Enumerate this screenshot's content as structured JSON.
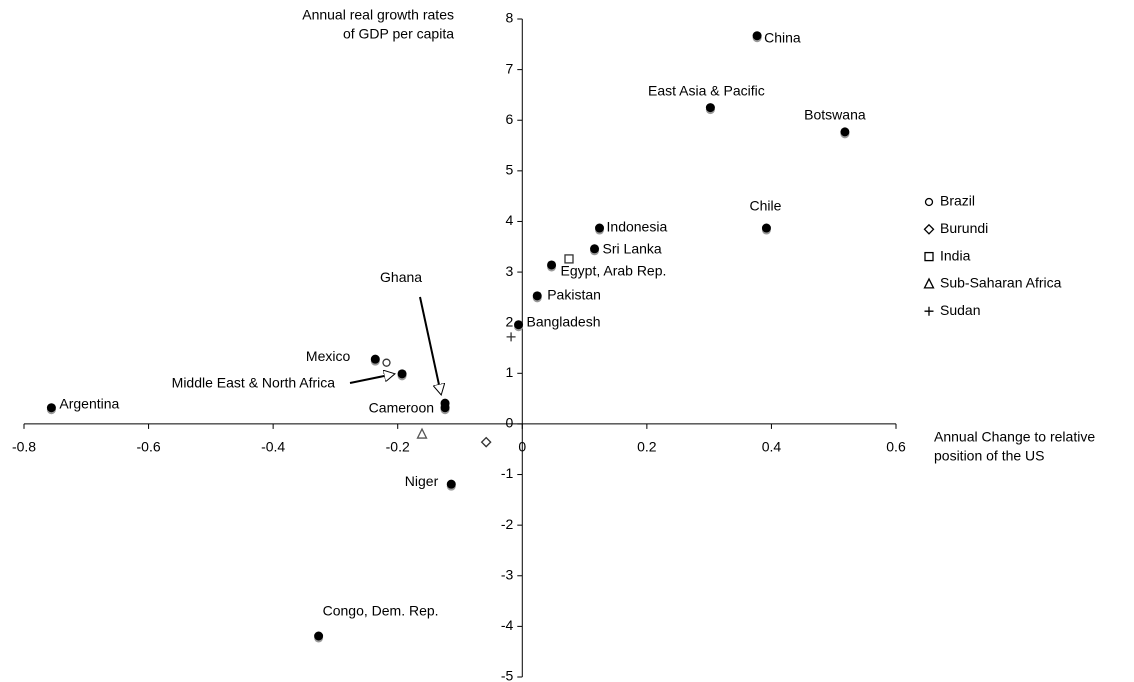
{
  "chart_data": {
    "type": "scatter",
    "xlabel": [
      "Annual Change to relative",
      "position of the US"
    ],
    "ylabel": [
      "Annual real growth rates",
      "of GDP per capita"
    ],
    "xlim": [
      -0.8,
      0.6
    ],
    "ylim": [
      -5,
      8
    ],
    "xticks": [
      -0.8,
      -0.6,
      -0.4,
      -0.2,
      0,
      0.2,
      0.4,
      0.6
    ],
    "yticks": [
      -5,
      -4,
      -3,
      -2,
      -1,
      0,
      1,
      2,
      3,
      4,
      5,
      6,
      7,
      8
    ],
    "points": {
      "color": "#000000",
      "shadow_color": "#999999",
      "labels": [
        "China",
        "East Asia & Pacific",
        "Botswana",
        "Chile",
        "Indonesia",
        "Sri Lanka",
        "Egypt, Arab Rep.",
        "Pakistan",
        "Bangladesh",
        "Mexico",
        "Middle East & North Africa",
        "Ghana",
        "Cameroon",
        "Argentina",
        "Niger",
        "Congo, Dem. Rep."
      ],
      "x": [
        0.377,
        0.302,
        0.518,
        0.392,
        0.124,
        0.116,
        0.047,
        0.024,
        -0.006,
        -0.236,
        -0.193,
        -0.124,
        -0.124,
        -0.756,
        -0.114,
        -0.327
      ],
      "y": [
        7.67,
        6.25,
        5.77,
        3.87,
        3.87,
        3.46,
        3.14,
        2.53,
        1.96,
        1.28,
        0.99,
        0.41,
        0.32,
        0.32,
        -1.19,
        -4.19
      ]
    },
    "series": [
      {
        "name": "Brazil",
        "marker": "circle",
        "color": "#333333",
        "x": [
          -0.218
        ],
        "values": [
          1.21
        ]
      },
      {
        "name": "Burundi",
        "marker": "diamond",
        "color": "#333333",
        "x": [
          -0.058
        ],
        "values": [
          -0.36
        ]
      },
      {
        "name": "India",
        "marker": "square",
        "color": "#333333",
        "x": [
          0.075
        ],
        "values": [
          3.26
        ]
      },
      {
        "name": "Sub-Saharan Africa",
        "marker": "triangle",
        "color": "#555555",
        "x": [
          -0.161
        ],
        "values": [
          -0.2
        ]
      },
      {
        "name": "Sudan",
        "marker": "plus",
        "color": "#333333",
        "x": [
          -0.018
        ],
        "values": [
          1.72
        ]
      }
    ]
  }
}
